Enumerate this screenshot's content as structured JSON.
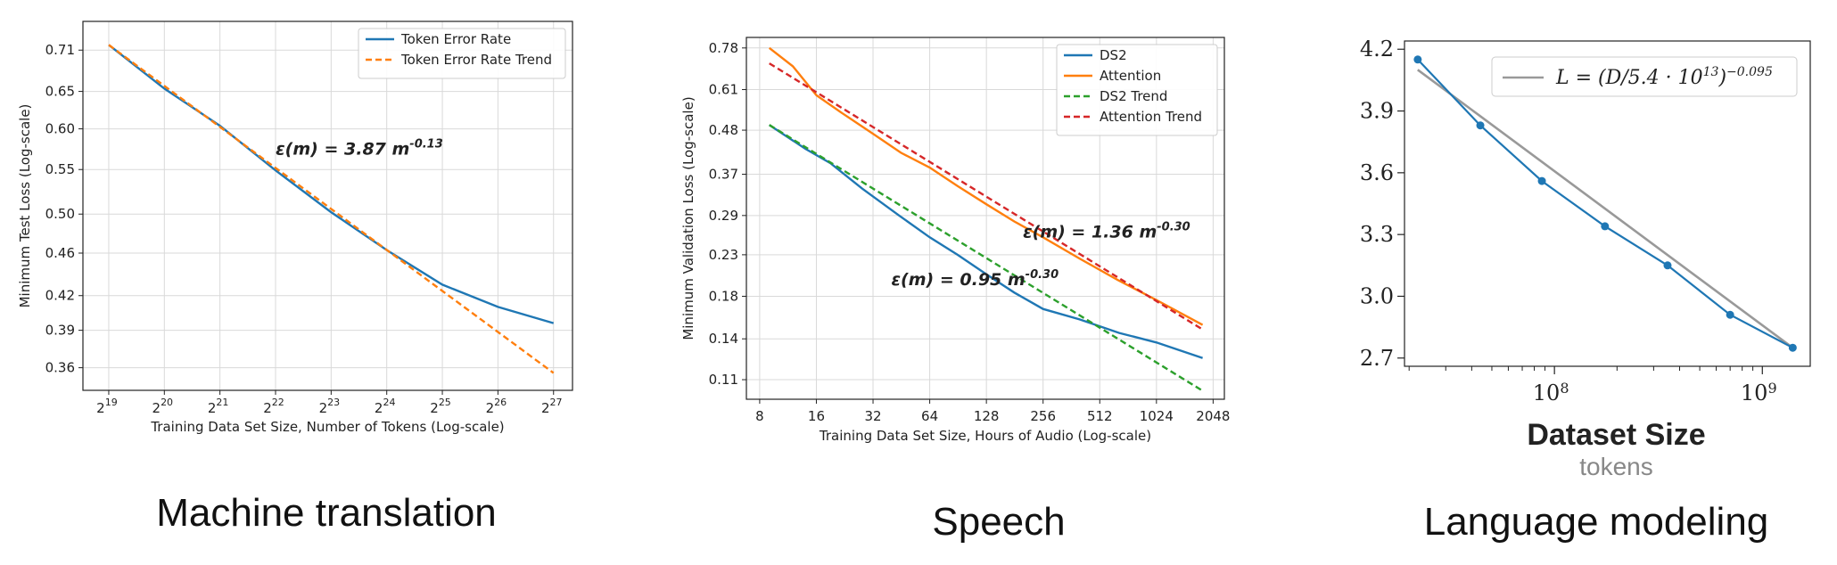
{
  "captions": [
    "Machine translation",
    "Speech",
    "Language modeling"
  ],
  "chart_data": [
    {
      "type": "line",
      "xscale": "log2",
      "yscale": "log",
      "xlabel": "Training Data Set Size, Number of Tokens (Log-scale)",
      "ylabel": "Minimum Test Loss (Log-scale)",
      "x_ticks": [
        {
          "value": 524288,
          "base": "2",
          "exp": "19"
        },
        {
          "value": 1048576,
          "base": "2",
          "exp": "20"
        },
        {
          "value": 2097152,
          "base": "2",
          "exp": "21"
        },
        {
          "value": 4194304,
          "base": "2",
          "exp": "22"
        },
        {
          "value": 8388608,
          "base": "2",
          "exp": "23"
        },
        {
          "value": 16777216,
          "base": "2",
          "exp": "24"
        },
        {
          "value": 33554432,
          "base": "2",
          "exp": "25"
        },
        {
          "value": 67108864,
          "base": "2",
          "exp": "26"
        },
        {
          "value": 134217728,
          "base": "2",
          "exp": "27"
        }
      ],
      "y_ticks": [
        {
          "value": 0.71,
          "label": "0.71"
        },
        {
          "value": 0.65,
          "label": "0.65"
        },
        {
          "value": 0.6,
          "label": "0.60"
        },
        {
          "value": 0.55,
          "label": "0.55"
        },
        {
          "value": 0.5,
          "label": "0.50"
        },
        {
          "value": 0.46,
          "label": "0.46"
        },
        {
          "value": 0.42,
          "label": "0.42"
        },
        {
          "value": 0.39,
          "label": "0.39"
        },
        {
          "value": 0.36,
          "label": "0.36"
        }
      ],
      "xlim": [
        380000,
        170000000
      ],
      "ylim": [
        0.343,
        0.755
      ],
      "grid": true,
      "legend": "top-right",
      "series": [
        {
          "name": "Token Error Rate",
          "color": "#1f77b4",
          "dash": false,
          "x": [
            524288,
            1048576,
            2097152,
            4194304,
            8388608,
            16777216,
            33554432,
            67108864,
            134217728
          ],
          "y": [
            0.718,
            0.654,
            0.604,
            0.549,
            0.502,
            0.463,
            0.43,
            0.41,
            0.396
          ]
        },
        {
          "name": "Token Error Rate Trend",
          "color": "#ff7f0e",
          "dash": true,
          "x": [
            524288,
            134217728
          ],
          "y": [
            0.718,
            0.356
          ]
        }
      ],
      "annotation": {
        "base": "ε(m) = 3.87 m",
        "sup": "-0.13",
        "x": 4200000,
        "y": 0.568
      }
    },
    {
      "type": "line",
      "xscale": "log2",
      "yscale": "log",
      "xlabel": "Training Data Set Size, Hours of Audio (Log-scale)",
      "ylabel": "Minimum Validation Loss (Log-scale)",
      "x_ticks": [
        {
          "value": 8,
          "label": "8"
        },
        {
          "value": 16,
          "label": "16"
        },
        {
          "value": 32,
          "label": "32"
        },
        {
          "value": 64,
          "label": "64"
        },
        {
          "value": 128,
          "label": "128"
        },
        {
          "value": 256,
          "label": "256"
        },
        {
          "value": 512,
          "label": "512"
        },
        {
          "value": 1024,
          "label": "1024"
        },
        {
          "value": 2048,
          "label": "2048"
        }
      ],
      "y_ticks": [
        {
          "value": 0.78,
          "label": "0.78"
        },
        {
          "value": 0.61,
          "label": "0.61"
        },
        {
          "value": 0.48,
          "label": "0.48"
        },
        {
          "value": 0.37,
          "label": "0.37"
        },
        {
          "value": 0.29,
          "label": "0.29"
        },
        {
          "value": 0.23,
          "label": "0.23"
        },
        {
          "value": 0.18,
          "label": "0.18"
        },
        {
          "value": 0.14,
          "label": "0.14"
        },
        {
          "value": 0.11,
          "label": "0.11"
        }
      ],
      "xlim": [
        6.8,
        2350
      ],
      "ylim": [
        0.098,
        0.83
      ],
      "grid": true,
      "legend": "top-right",
      "series": [
        {
          "name": "DS2",
          "color": "#1f77b4",
          "dash": false,
          "x": [
            9,
            14,
            19,
            28,
            44,
            64,
            90,
            128,
            180,
            256,
            400,
            650,
            1024,
            1800
          ],
          "y": [
            0.495,
            0.43,
            0.395,
            0.34,
            0.29,
            0.255,
            0.23,
            0.205,
            0.184,
            0.167,
            0.157,
            0.145,
            0.137,
            0.125
          ]
        },
        {
          "name": "Attention",
          "color": "#ff7f0e",
          "dash": false,
          "x": [
            9,
            12,
            16,
            22,
            32,
            45,
            64,
            90,
            128,
            180,
            256,
            400,
            640,
            1024,
            1800
          ],
          "y": [
            0.78,
            0.7,
            0.59,
            0.53,
            0.47,
            0.42,
            0.385,
            0.345,
            0.31,
            0.28,
            0.255,
            0.225,
            0.198,
            0.176,
            0.152
          ]
        },
        {
          "name": "DS2 Trend",
          "color": "#2ca02c",
          "dash": true,
          "x": [
            9,
            1800
          ],
          "y": [
            0.495,
            0.103
          ]
        },
        {
          "name": "Attention Trend",
          "color": "#d62728",
          "dash": true,
          "x": [
            9,
            1800
          ],
          "y": [
            0.712,
            0.148
          ]
        }
      ],
      "annotations": [
        {
          "base": "ε(m) = 1.36 m",
          "sup": "-0.30",
          "x": 200,
          "y": 0.255
        },
        {
          "base": "ε(m) = 0.95 m",
          "sup": "-0.30",
          "x": 40,
          "y": 0.192
        }
      ]
    },
    {
      "type": "line",
      "xscale": "log10",
      "yscale": "linear",
      "xlabel": "Dataset Size",
      "xsublabel": "tokens",
      "x_ticks": [
        {
          "value": 100000000,
          "base": "10",
          "exp": "8"
        },
        {
          "value": 1000000000,
          "base": "10",
          "exp": "9"
        }
      ],
      "y_ticks": [
        {
          "value": 4.2,
          "label": "4.2"
        },
        {
          "value": 3.9,
          "label": "3.9"
        },
        {
          "value": 3.6,
          "label": "3.6"
        },
        {
          "value": 3.3,
          "label": "3.3"
        },
        {
          "value": 3.0,
          "label": "3.0"
        },
        {
          "value": 2.7,
          "label": "2.7"
        }
      ],
      "xlim": [
        19000000,
        1700000000
      ],
      "ylim": [
        2.66,
        4.24
      ],
      "grid": false,
      "legend": "top-right",
      "series": [
        {
          "name": "",
          "color": "#1f77b4",
          "dash": false,
          "markers": true,
          "x": [
            22000000,
            44000000,
            87000000,
            175000000,
            350000000,
            700000000,
            1400000000
          ],
          "y": [
            4.15,
            3.83,
            3.56,
            3.34,
            3.15,
            2.91,
            2.75
          ]
        },
        {
          "name": "L = (D/5.4 · 10¹³)^-0.095",
          "color": "#999999",
          "dash": false,
          "markers": false,
          "x": [
            22000000,
            1400000000
          ],
          "y": [
            4.1,
            2.75
          ]
        }
      ],
      "legend_label": {
        "pre": "L = (D/5.4 · 10",
        "sup1": "13",
        "mid": ")",
        "sup2": "−0.095"
      }
    }
  ]
}
